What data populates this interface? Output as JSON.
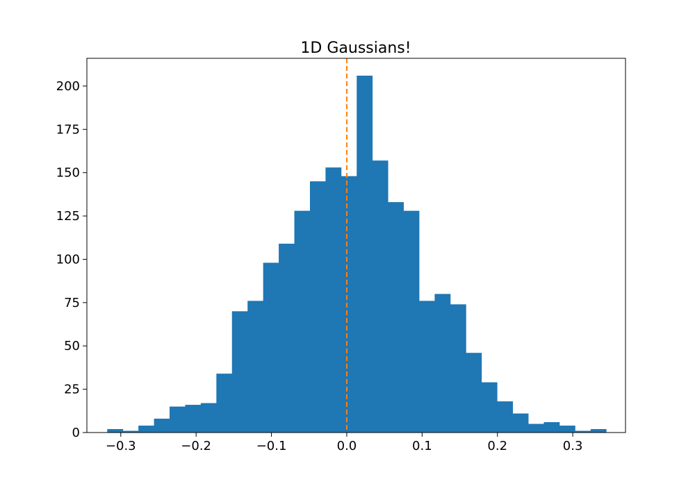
{
  "chart_data": {
    "type": "bar",
    "title": "1D Gaussians!",
    "xlabel": "",
    "ylabel": "",
    "xlim": [
      -0.345,
      0.37
    ],
    "ylim": [
      0,
      216
    ],
    "grid": false,
    "legend": "none",
    "bar_color": "#1f77b4",
    "marker_line": {
      "x": 0.0,
      "style": "dashed",
      "color": "#ff7f0e"
    },
    "bins": {
      "start": -0.318,
      "width": 0.0207,
      "counts": [
        2,
        1,
        4,
        8,
        15,
        16,
        17,
        34,
        70,
        76,
        98,
        109,
        128,
        145,
        153,
        148,
        206,
        157,
        133,
        128,
        76,
        80,
        74,
        46,
        29,
        18,
        11,
        5,
        6,
        4,
        1,
        2
      ]
    },
    "x_ticks": [
      {
        "value": -0.3,
        "label": "−0.3"
      },
      {
        "value": -0.2,
        "label": "−0.2"
      },
      {
        "value": -0.1,
        "label": "−0.1"
      },
      {
        "value": 0.0,
        "label": "0.0"
      },
      {
        "value": 0.1,
        "label": "0.1"
      },
      {
        "value": 0.2,
        "label": "0.2"
      },
      {
        "value": 0.3,
        "label": "0.3"
      }
    ],
    "y_ticks": [
      {
        "value": 0,
        "label": "0"
      },
      {
        "value": 25,
        "label": "25"
      },
      {
        "value": 50,
        "label": "50"
      },
      {
        "value": 75,
        "label": "75"
      },
      {
        "value": 100,
        "label": "100"
      },
      {
        "value": 125,
        "label": "125"
      },
      {
        "value": 150,
        "label": "150"
      },
      {
        "value": 175,
        "label": "175"
      },
      {
        "value": 200,
        "label": "200"
      }
    ]
  }
}
